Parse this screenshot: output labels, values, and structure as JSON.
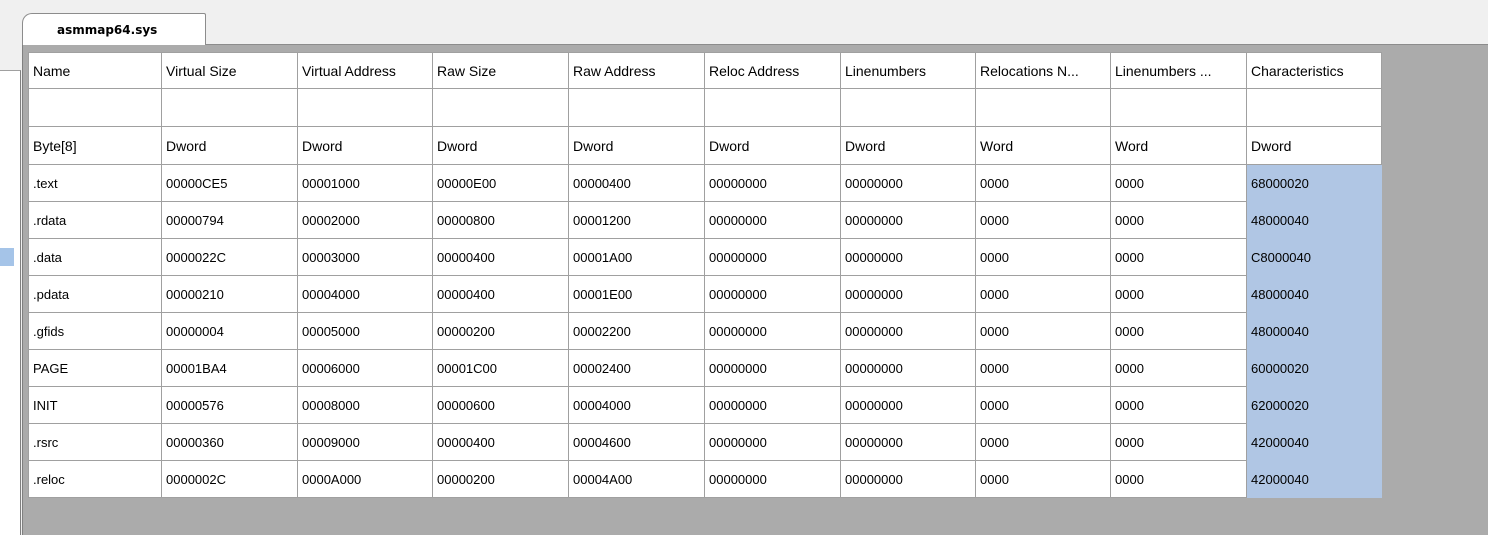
{
  "tab": {
    "label": "asmmap64.sys"
  },
  "table": {
    "headers": [
      "Name",
      "Virtual Size",
      "Virtual Address",
      "Raw Size",
      "Raw Address",
      "Reloc Address",
      "Linenumbers",
      "Relocations N...",
      "Linenumbers ...",
      "Characteristics"
    ],
    "types": [
      "Byte[8]",
      "Dword",
      "Dword",
      "Dword",
      "Dword",
      "Dword",
      "Dword",
      "Word",
      "Word",
      "Dword"
    ],
    "rows": [
      [
        ".text",
        "00000CE5",
        "00001000",
        "00000E00",
        "00000400",
        "00000000",
        "00000000",
        "0000",
        "0000",
        "68000020"
      ],
      [
        ".rdata",
        "00000794",
        "00002000",
        "00000800",
        "00001200",
        "00000000",
        "00000000",
        "0000",
        "0000",
        "48000040"
      ],
      [
        ".data",
        "0000022C",
        "00003000",
        "00000400",
        "00001A00",
        "00000000",
        "00000000",
        "0000",
        "0000",
        "C8000040"
      ],
      [
        ".pdata",
        "00000210",
        "00004000",
        "00000400",
        "00001E00",
        "00000000",
        "00000000",
        "0000",
        "0000",
        "48000040"
      ],
      [
        ".gfids",
        "00000004",
        "00005000",
        "00000200",
        "00002200",
        "00000000",
        "00000000",
        "0000",
        "0000",
        "48000040"
      ],
      [
        "PAGE",
        "00001BA4",
        "00006000",
        "00001C00",
        "00002400",
        "00000000",
        "00000000",
        "0000",
        "0000",
        "60000020"
      ],
      [
        "INIT",
        "00000576",
        "00008000",
        "00000600",
        "00004000",
        "00000000",
        "00000000",
        "0000",
        "0000",
        "62000020"
      ],
      [
        ".rsrc",
        "00000360",
        "00009000",
        "00000400",
        "00004600",
        "00000000",
        "00000000",
        "0000",
        "0000",
        "42000040"
      ],
      [
        ".reloc",
        "0000002C",
        "0000A000",
        "00000200",
        "00004A00",
        "00000000",
        "00000000",
        "0000",
        "0000",
        "42000040"
      ]
    ]
  }
}
